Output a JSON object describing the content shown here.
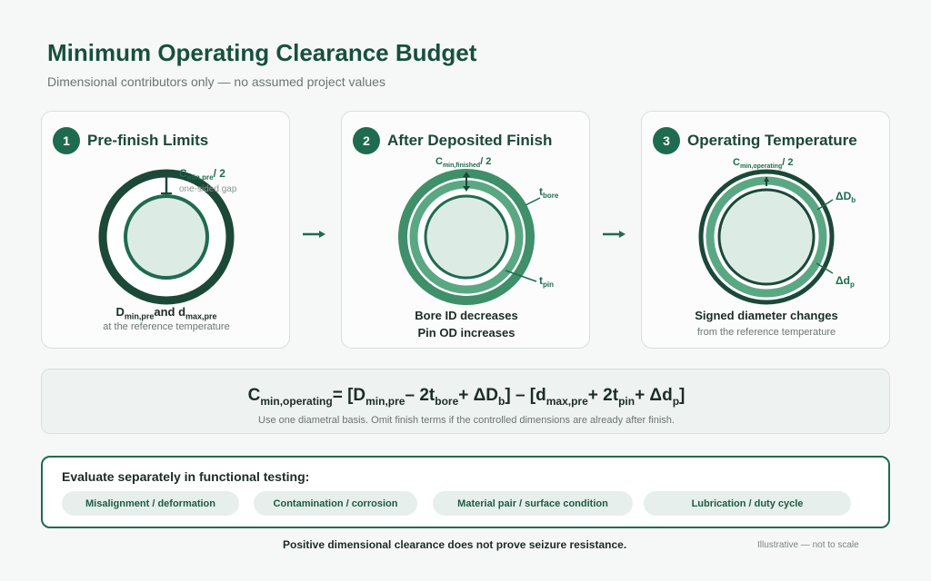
{
  "header": {
    "title": "Minimum Operating Clearance Budget",
    "subtitle": "Dimensional contributors only — no assumed project values"
  },
  "steps": [
    {
      "number": "1",
      "title": "Pre-finish Limits",
      "gap_label_main": "C",
      "gap_label_sub": "min,pre",
      "gap_label_tail": "/ 2",
      "gap_note": "one-sided gap",
      "caption_line1_a": "D",
      "caption_line1_a_sub": "min,pre",
      "caption_line1_b": "and d",
      "caption_line1_b_sub": "max,pre",
      "caption_line2": "at the reference temperature"
    },
    {
      "number": "2",
      "title": "After Deposited Finish",
      "gap_label_main": "C",
      "gap_label_sub": "min,finished",
      "gap_label_tail": "/ 2",
      "bore_label": "t",
      "bore_label_sub": "bore",
      "pin_label": "t",
      "pin_label_sub": "pin",
      "caption_line1": "Bore ID decreases",
      "caption_line2": "Pin OD increases"
    },
    {
      "number": "3",
      "title": "Operating Temperature",
      "gap_label_main": "C",
      "gap_label_sub": "min,operating",
      "gap_label_tail": "/ 2",
      "bore_label": "ΔD",
      "bore_label_sub": "b",
      "pin_label": "Δd",
      "pin_label_sub": "p",
      "caption_line1": "Signed diameter changes",
      "caption_line2": "from the reference temperature"
    }
  ],
  "formula": {
    "c": "C",
    "c_sub": "min,operating",
    "eq": "= [D",
    "d1_sub": "min,pre",
    "m1": "– 2t",
    "t1_sub": "bore",
    "p1": "+ ΔD",
    "db_sub": "b",
    "mid": "] – [d",
    "d2_sub": "max,pre",
    "p2": "+ 2t",
    "t2_sub": "pin",
    "p3": "+ Δd",
    "dp_sub": "p",
    "end": "]",
    "note": "Use one diametral basis. Omit finish terms if the controlled dimensions are already after finish."
  },
  "evaluate": {
    "title": "Evaluate separately in functional testing:",
    "items": [
      "Misalignment / deformation",
      "Contamination / corrosion",
      "Material pair / surface condition",
      "Lubrication / duty cycle"
    ]
  },
  "footer": {
    "statement": "Positive dimensional clearance does not prove seizure resistance.",
    "note": "Illustrative — not to scale"
  },
  "colors": {
    "dark_green": "#1c4838",
    "accent_green": "#1f6b4f",
    "mid_green": "#5aa883",
    "light_fill": "#dcece4"
  }
}
